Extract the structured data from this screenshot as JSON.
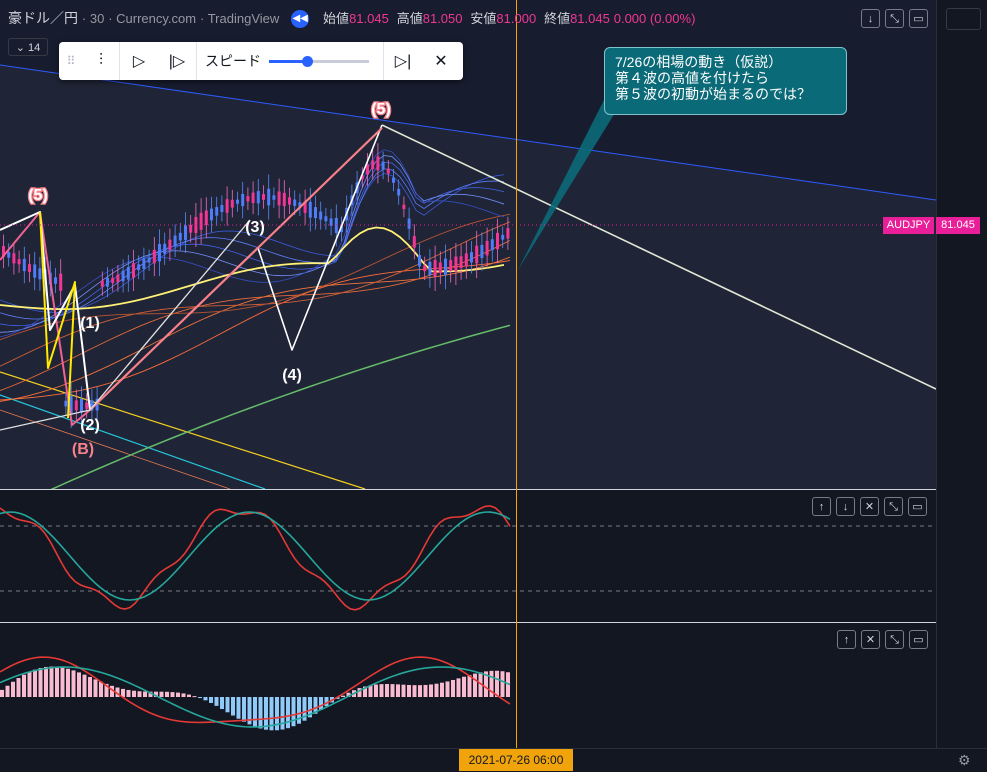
{
  "header": {
    "symbol": "豪ドル／円",
    "interval": "30",
    "source": "Currency.com",
    "platform": "TradingView",
    "open_label": "始値",
    "open_value": "81.045",
    "high_label": "高値",
    "high_value": "81.050",
    "low_label": "安値",
    "low_value": "81.000",
    "close_label": "終値",
    "close_value": "81.045",
    "change": "0.000 (0.00%)"
  },
  "interval_dropdown": "14",
  "replay_toolbar": {
    "speed_label": "スピード",
    "speed_level": 0.38
  },
  "callout": {
    "text": "7/26の相場の動き（仮説）\n第４波の高値を付けたら\n第５波の初動が始まるのでは？"
  },
  "price_tag": {
    "symbol": "AUDJPY",
    "price": "81.045"
  },
  "time_tag": "2021-07-26   06:00",
  "wave_labels": [
    "(5)",
    "(1)",
    "(2)",
    "(B)",
    "(3)",
    "(4)",
    "(5)"
  ],
  "icons": {
    "pane_controls": [
      "arrow-down-icon",
      "collapse-icon",
      "maximize-icon",
      "arrow-up-icon",
      "close-icon"
    ],
    "replay": [
      "bar-select-icon",
      "play-icon",
      "step-forward-icon",
      "jump-to-realtime-icon",
      "close-icon"
    ],
    "settings": "gear-icon"
  },
  "colors": {
    "accent": "#2962ff",
    "price": "#e91e99",
    "cursor": "#f7a600",
    "callout": "#0b6a78"
  }
}
